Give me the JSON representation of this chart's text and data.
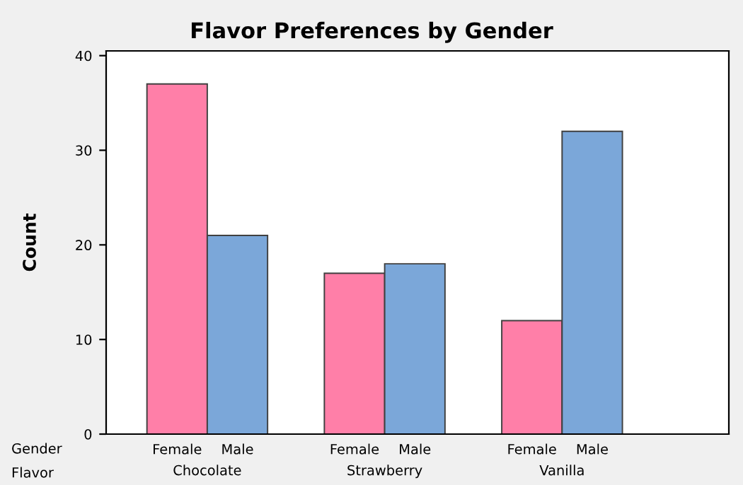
{
  "chart_data": {
    "type": "bar",
    "title": "Flavor Preferences by Gender",
    "ylabel": "Count",
    "categories": [
      "Chocolate",
      "Strawberry",
      "Vanilla"
    ],
    "series": [
      {
        "name": "Female",
        "color": "#ff7fa8",
        "values": [
          37,
          17,
          12
        ]
      },
      {
        "name": "Male",
        "color": "#7ba7d9",
        "values": [
          21,
          18,
          32
        ]
      }
    ],
    "ylim": [
      0,
      40.5
    ],
    "yticks": [
      0,
      10,
      20,
      30,
      40
    ],
    "grid": false,
    "legend": false,
    "annotations": [
      "Gender",
      "Flavor"
    ]
  }
}
